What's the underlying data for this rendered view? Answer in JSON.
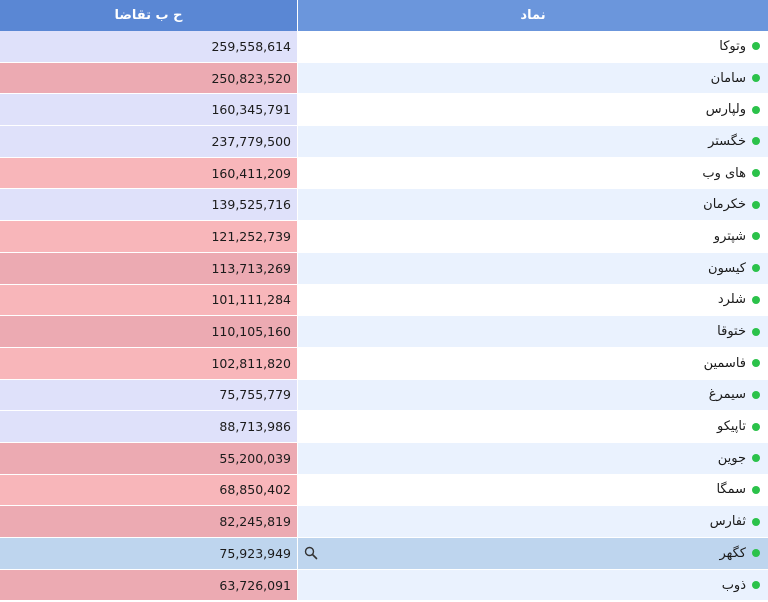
{
  "colors": {
    "header_demand": "#5a87d4",
    "header_symbol": "#6b96dc",
    "status_dot": "#2bc24a",
    "demand_lavender": "#dfe1fa",
    "demand_pink": "#f8b6ba",
    "demand_rose": "#ecaab2",
    "symbol_white": "#ffffff",
    "symbol_tint": "#eaf2fe",
    "symbol_selected": "#bed5ee",
    "demand_selected": "#bed5ee"
  },
  "header": {
    "demand_label": "ح ب تقاضا",
    "symbol_label": "نماد"
  },
  "rows": [
    {
      "symbol": "وتوکا",
      "demand": "259,558,614",
      "demand_tone": "lavender",
      "stripe": "white"
    },
    {
      "symbol": "سامان",
      "demand": "250,823,520",
      "demand_tone": "rose",
      "stripe": "tint"
    },
    {
      "symbol": "ولپارس",
      "demand": "160,345,791",
      "demand_tone": "lavender",
      "stripe": "white"
    },
    {
      "symbol": "خگستر",
      "demand": "237,779,500",
      "demand_tone": "lavender",
      "stripe": "tint"
    },
    {
      "symbol": "های وب",
      "demand": "160,411,209",
      "demand_tone": "pink",
      "stripe": "white"
    },
    {
      "symbol": "خکرمان",
      "demand": "139,525,716",
      "demand_tone": "lavender",
      "stripe": "tint"
    },
    {
      "symbol": "شپترو",
      "demand": "121,252,739",
      "demand_tone": "pink",
      "stripe": "white"
    },
    {
      "symbol": "کیسون",
      "demand": "113,713,269",
      "demand_tone": "rose",
      "stripe": "tint"
    },
    {
      "symbol": "شلرد",
      "demand": "101,111,284",
      "demand_tone": "pink",
      "stripe": "white"
    },
    {
      "symbol": "ختوقا",
      "demand": "110,105,160",
      "demand_tone": "rose",
      "stripe": "tint"
    },
    {
      "symbol": "فاسمین",
      "demand": "102,811,820",
      "demand_tone": "pink",
      "stripe": "white"
    },
    {
      "symbol": "سیمرغ",
      "demand": "75,755,779",
      "demand_tone": "lavender",
      "stripe": "tint"
    },
    {
      "symbol": "تاپیکو",
      "demand": "88,713,986",
      "demand_tone": "lavender",
      "stripe": "white"
    },
    {
      "symbol": "جوین",
      "demand": "55,200,039",
      "demand_tone": "rose",
      "stripe": "tint"
    },
    {
      "symbol": "سمگا",
      "demand": "68,850,402",
      "demand_tone": "pink",
      "stripe": "white"
    },
    {
      "symbol": "ثفارس",
      "demand": "82,245,819",
      "demand_tone": "rose",
      "stripe": "tint"
    },
    {
      "symbol": "کگهر",
      "demand": "75,923,949",
      "demand_tone": "selected",
      "stripe": "selected",
      "selected": true,
      "icon": "search-icon"
    },
    {
      "symbol": "ذوب",
      "demand": "63,726,091",
      "demand_tone": "rose",
      "stripe": "tint"
    }
  ]
}
